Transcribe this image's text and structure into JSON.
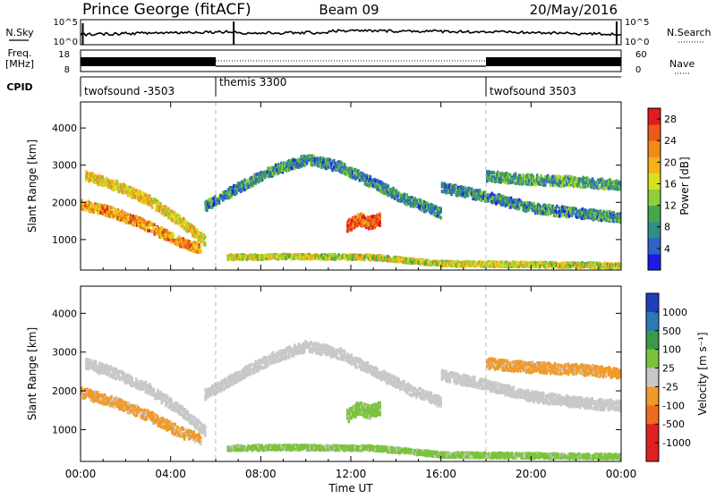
{
  "header": {
    "radar": "Prince George (fitACF)",
    "beam": "Beam 09",
    "date": "20/May/2016"
  },
  "summary": {
    "nsky_label": "N.Sky",
    "nsky_ticks": [
      "10^5",
      "10^0"
    ],
    "nsearch_label": "N.Search",
    "freq_label_1": "Freq.",
    "freq_label_2": "[MHz]",
    "freq_ticks": [
      "18",
      "8"
    ],
    "nave_label": "Nave",
    "nave_ticks": [
      "60",
      "0"
    ],
    "cpid_label": "CPID",
    "cpid_segments": [
      {
        "name": "twofsound -3503",
        "start": 0,
        "end": 6
      },
      {
        "name": "themis 3300",
        "start": 6,
        "end": 18
      },
      {
        "name": "twofsound 3503",
        "start": 18,
        "end": 24
      }
    ]
  },
  "chart_data": [
    {
      "type": "heatmap",
      "title": "Power",
      "ylabel": "Slant Range [km]",
      "xlabel": "Time UT",
      "xlim": [
        0,
        24
      ],
      "ylim": [
        180,
        4700
      ],
      "x_ticks": [
        "00:00",
        "04:00",
        "08:00",
        "12:00",
        "16:00",
        "20:00",
        "00:00"
      ],
      "y_ticks": [
        1000,
        2000,
        3000,
        4000
      ],
      "colorbar": {
        "label": "Power [dB]",
        "ticks": [
          4,
          8,
          12,
          16,
          20,
          24,
          28
        ],
        "range": [
          0,
          30
        ],
        "colors": [
          "#1c1ce6",
          "#2f63c8",
          "#2f8f86",
          "#47a54a",
          "#8fce3a",
          "#d6e01e",
          "#f5b21a",
          "#f28a18",
          "#ec5a1a",
          "#e01c1c"
        ]
      },
      "features": [
        {
          "name": "band A",
          "points": [
            [
              0.2,
              2700
            ],
            [
              1.5,
              2450
            ],
            [
              3,
              2050
            ],
            [
              4.5,
              1450
            ],
            [
              5.5,
              950
            ]
          ],
          "value": 18
        },
        {
          "name": "band B",
          "points": [
            [
              0,
              1950
            ],
            [
              1.5,
              1700
            ],
            [
              3,
              1350
            ],
            [
              4.5,
              900
            ],
            [
              5.3,
              750
            ]
          ],
          "value": 22
        },
        {
          "name": "arc",
          "points": [
            [
              5.5,
              1900
            ],
            [
              7,
              2400
            ],
            [
              8.5,
              2850
            ],
            [
              10,
              3150
            ],
            [
              11.5,
              2950
            ],
            [
              13,
              2500
            ],
            [
              14.5,
              2050
            ],
            [
              16,
              1700
            ]
          ],
          "value": 8
        },
        {
          "name": "patch",
          "points": [
            [
              11.8,
              1350
            ],
            [
              12.3,
              1550
            ],
            [
              12.8,
              1450
            ],
            [
              13.3,
              1550
            ]
          ],
          "value": 26
        },
        {
          "name": "evening",
          "points": [
            [
              16,
              2400
            ],
            [
              18,
              2150
            ],
            [
              20,
              1850
            ],
            [
              22,
              1700
            ],
            [
              24,
              1600
            ]
          ],
          "value": 8
        },
        {
          "name": "evening high",
          "points": [
            [
              18,
              2700
            ],
            [
              20,
              2600
            ],
            [
              22,
              2550
            ],
            [
              24,
              2450
            ]
          ],
          "value": 10
        },
        {
          "name": "near range",
          "points": [
            [
              6.5,
              520
            ],
            [
              9,
              540
            ],
            [
              11,
              530
            ],
            [
              13,
              520
            ],
            [
              16,
              350
            ],
            [
              24,
              300
            ]
          ],
          "value": 16
        }
      ]
    },
    {
      "type": "heatmap",
      "title": "Velocity",
      "ylabel": "Slant Range [km]",
      "xlabel": "Time UT",
      "xlim": [
        0,
        24
      ],
      "ylim": [
        180,
        4700
      ],
      "x_ticks": [
        "00:00",
        "04:00",
        "08:00",
        "12:00",
        "16:00",
        "20:00",
        "00:00"
      ],
      "y_ticks": [
        1000,
        2000,
        3000,
        4000
      ],
      "colorbar": {
        "label": "Velocity [m s⁻¹]",
        "ticks": [
          "1000",
          "500",
          "100",
          "25",
          "-25",
          "-100",
          "-500",
          "-1000"
        ],
        "colors": [
          "#1f3fbf",
          "#2a7ab8",
          "#3a9a4a",
          "#7bc43a",
          "#c8c8c8",
          "#f09a2a",
          "#ef6b1c",
          "#e02020"
        ]
      },
      "features": [
        {
          "name": "band A",
          "points": [
            [
              0.2,
              2700
            ],
            [
              1.5,
              2450
            ],
            [
              3,
              2050
            ],
            [
              4.5,
              1450
            ],
            [
              5.5,
              950
            ]
          ],
          "value": "grey"
        },
        {
          "name": "band B",
          "points": [
            [
              0,
              1950
            ],
            [
              1.5,
              1700
            ],
            [
              3,
              1350
            ],
            [
              4.5,
              900
            ],
            [
              5.3,
              750
            ]
          ],
          "value": "orange"
        },
        {
          "name": "arc",
          "points": [
            [
              5.5,
              1900
            ],
            [
              7,
              2400
            ],
            [
              8.5,
              2850
            ],
            [
              10,
              3150
            ],
            [
              11.5,
              2950
            ],
            [
              13,
              2500
            ],
            [
              14.5,
              2050
            ],
            [
              16,
              1700
            ]
          ],
          "value": "grey"
        },
        {
          "name": "patch",
          "points": [
            [
              11.8,
              1350
            ],
            [
              12.3,
              1550
            ],
            [
              12.8,
              1450
            ],
            [
              13.3,
              1550
            ]
          ],
          "value": "green"
        },
        {
          "name": "evening",
          "points": [
            [
              16,
              2400
            ],
            [
              18,
              2150
            ],
            [
              20,
              1850
            ],
            [
              22,
              1700
            ],
            [
              24,
              1600
            ]
          ],
          "value": "grey"
        },
        {
          "name": "evening high",
          "points": [
            [
              18,
              2700
            ],
            [
              20,
              2600
            ],
            [
              22,
              2550
            ],
            [
              24,
              2450
            ]
          ],
          "value": "orange"
        },
        {
          "name": "near range",
          "points": [
            [
              6.5,
              520
            ],
            [
              9,
              540
            ],
            [
              11,
              530
            ],
            [
              13,
              520
            ],
            [
              16,
              350
            ],
            [
              24,
              300
            ]
          ],
          "value": "green"
        }
      ]
    }
  ]
}
